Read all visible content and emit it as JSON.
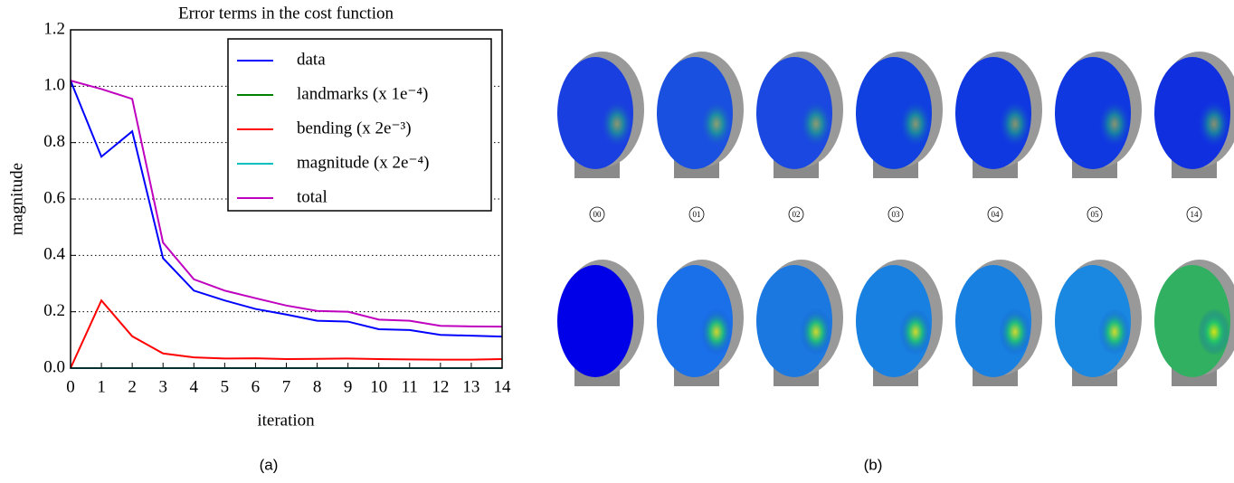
{
  "chart_data": {
    "type": "line",
    "title": "Error terms in the cost function",
    "x_label": "iteration",
    "y_label": "magnitude",
    "x": [
      0,
      1,
      2,
      3,
      4,
      5,
      6,
      7,
      8,
      9,
      10,
      11,
      12,
      13,
      14
    ],
    "series": [
      {
        "name": "data",
        "color": "#0000ff",
        "values": [
          1.02,
          0.75,
          0.84,
          0.39,
          0.275,
          0.24,
          0.21,
          0.19,
          0.168,
          0.165,
          0.138,
          0.135,
          0.118,
          0.115,
          0.112
        ]
      },
      {
        "name": "landmarks (x 1e⁻⁴)",
        "color": "#008000",
        "values": [
          0,
          0,
          0,
          0,
          0,
          0,
          0,
          0,
          0,
          0,
          0,
          0,
          0,
          0,
          0
        ]
      },
      {
        "name": "bending (x 2e⁻³)",
        "color": "#ff0000",
        "values": [
          0,
          0.24,
          0.113,
          0.052,
          0.038,
          0.034,
          0.035,
          0.032,
          0.033,
          0.034,
          0.032,
          0.031,
          0.03,
          0.03,
          0.032
        ]
      },
      {
        "name": "magnitude (x 2e⁻⁴)",
        "color": "#00bfbf",
        "values": [
          0,
          0,
          0,
          0,
          0,
          0,
          0,
          0,
          0,
          0,
          0,
          0,
          0,
          0,
          0
        ]
      },
      {
        "name": "total",
        "color": "#bf00bf",
        "values": [
          1.02,
          0.99,
          0.955,
          0.445,
          0.315,
          0.275,
          0.248,
          0.222,
          0.203,
          0.2,
          0.172,
          0.168,
          0.15,
          0.148,
          0.147
        ]
      }
    ],
    "xlim": [
      0,
      14
    ],
    "ylim": [
      0,
      1.2
    ],
    "xticks": [
      0,
      1,
      2,
      3,
      4,
      5,
      6,
      7,
      8,
      9,
      10,
      11,
      12,
      13,
      14
    ],
    "yticks": [
      {
        "value": 0,
        "label": "0.0"
      },
      0.2,
      0.4,
      0.6,
      0.8,
      {
        "value": 1,
        "label": "1.0"
      },
      1.2
    ],
    "grid": true,
    "legend": "upper right"
  },
  "figure": {
    "panel_labels": [
      "(a)",
      "(b)"
    ],
    "face_labels": [
      "00",
      "01",
      "02",
      "03",
      "04",
      "05",
      "14"
    ]
  }
}
